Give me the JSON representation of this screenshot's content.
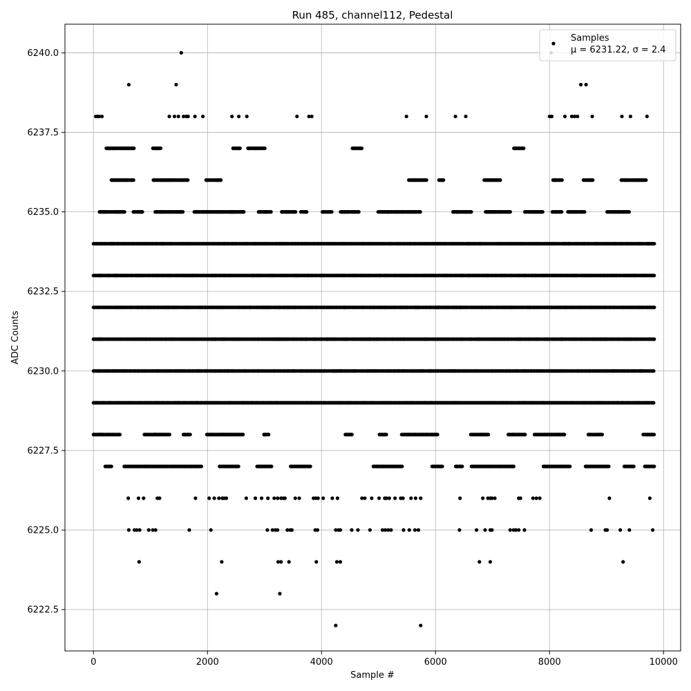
{
  "chart_data": {
    "type": "scatter",
    "title": "Run 485, channel112, Pedestal",
    "xlabel": "Sample #",
    "ylabel": "ADC Counts",
    "xlim": [
      -500,
      10300
    ],
    "ylim": [
      6221.2,
      6240.9
    ],
    "xticks": [
      0,
      2000,
      4000,
      6000,
      8000,
      10000
    ],
    "xtick_labels": [
      "0",
      "2000",
      "4000",
      "6000",
      "8000",
      "10000"
    ],
    "yticks": [
      6222.5,
      6225.0,
      6227.5,
      6230.0,
      6232.5,
      6235.0,
      6237.5,
      6240.0
    ],
    "ytick_labels": [
      "6222.5",
      "6225.0",
      "6227.5",
      "6230.0",
      "6232.5",
      "6235.0",
      "6237.5",
      "6240.0"
    ],
    "grid": true,
    "legend_position": "top-right",
    "marker_color": "#000000",
    "series": [
      {
        "name": "Samples",
        "label_line2": "μ = 6231.22, σ = 2.4",
        "n_samples": 9840,
        "sample_range": [
          0,
          9840
        ],
        "dense_levels": [
          6229,
          6230,
          6231,
          6232,
          6233,
          6234
        ],
        "partial_levels": [
          {
            "y": 6235,
            "density": 0.55
          },
          {
            "y": 6228,
            "density": 0.4
          },
          {
            "y": 6227,
            "density": 0.45
          },
          {
            "y": 6236,
            "density": 0.28
          },
          {
            "y": 6237,
            "density": 0.16
          }
        ],
        "points": [
          [
            1540,
            6240
          ],
          [
            8030,
            6240
          ],
          [
            620,
            6239
          ],
          [
            1450,
            6239
          ],
          [
            8550,
            6239
          ],
          [
            8640,
            6239
          ],
          [
            40,
            6238
          ],
          [
            70,
            6238
          ],
          [
            100,
            6238
          ],
          [
            150,
            6238
          ],
          [
            1330,
            6238
          ],
          [
            1420,
            6238
          ],
          [
            1490,
            6238
          ],
          [
            1580,
            6238
          ],
          [
            1630,
            6238
          ],
          [
            1660,
            6238
          ],
          [
            1780,
            6238
          ],
          [
            1920,
            6238
          ],
          [
            2430,
            6238
          ],
          [
            2550,
            6238
          ],
          [
            2690,
            6238
          ],
          [
            3570,
            6238
          ],
          [
            3780,
            6238
          ],
          [
            3830,
            6238
          ],
          [
            5490,
            6238
          ],
          [
            5840,
            6238
          ],
          [
            6350,
            6238
          ],
          [
            6530,
            6238
          ],
          [
            8000,
            6238
          ],
          [
            8040,
            6238
          ],
          [
            8270,
            6238
          ],
          [
            8390,
            6238
          ],
          [
            8440,
            6238
          ],
          [
            8490,
            6238
          ],
          [
            8750,
            6238
          ],
          [
            9270,
            6238
          ],
          [
            9420,
            6238
          ],
          [
            9710,
            6238
          ],
          [
            610,
            6226
          ],
          [
            790,
            6226
          ],
          [
            880,
            6226
          ],
          [
            1120,
            6226
          ],
          [
            1160,
            6226
          ],
          [
            1790,
            6226
          ],
          [
            2030,
            6226
          ],
          [
            2120,
            6226
          ],
          [
            2200,
            6226
          ],
          [
            2260,
            6226
          ],
          [
            2290,
            6226
          ],
          [
            2330,
            6226
          ],
          [
            2680,
            6226
          ],
          [
            2840,
            6226
          ],
          [
            2950,
            6226
          ],
          [
            3060,
            6226
          ],
          [
            3170,
            6226
          ],
          [
            3230,
            6226
          ],
          [
            3290,
            6226
          ],
          [
            3330,
            6226
          ],
          [
            3360,
            6226
          ],
          [
            3540,
            6226
          ],
          [
            3610,
            6226
          ],
          [
            3860,
            6226
          ],
          [
            3900,
            6226
          ],
          [
            3940,
            6226
          ],
          [
            4030,
            6226
          ],
          [
            4190,
            6226
          ],
          [
            4280,
            6226
          ],
          [
            4710,
            6226
          ],
          [
            4760,
            6226
          ],
          [
            4880,
            6226
          ],
          [
            5010,
            6226
          ],
          [
            5110,
            6226
          ],
          [
            5140,
            6226
          ],
          [
            5190,
            6226
          ],
          [
            5290,
            6226
          ],
          [
            5390,
            6226
          ],
          [
            5430,
            6226
          ],
          [
            5570,
            6226
          ],
          [
            5650,
            6226
          ],
          [
            5740,
            6226
          ],
          [
            6430,
            6226
          ],
          [
            6830,
            6226
          ],
          [
            6920,
            6226
          ],
          [
            6960,
            6226
          ],
          [
            6990,
            6226
          ],
          [
            7040,
            6226
          ],
          [
            7460,
            6226
          ],
          [
            7490,
            6226
          ],
          [
            7710,
            6226
          ],
          [
            7770,
            6226
          ],
          [
            7830,
            6226
          ],
          [
            9050,
            6226
          ],
          [
            9760,
            6226
          ],
          [
            620,
            6225
          ],
          [
            720,
            6225
          ],
          [
            760,
            6225
          ],
          [
            810,
            6225
          ],
          [
            970,
            6225
          ],
          [
            1040,
            6225
          ],
          [
            1090,
            6225
          ],
          [
            1680,
            6225
          ],
          [
            2060,
            6225
          ],
          [
            3050,
            6225
          ],
          [
            3140,
            6225
          ],
          [
            3190,
            6225
          ],
          [
            3230,
            6225
          ],
          [
            3400,
            6225
          ],
          [
            3450,
            6225
          ],
          [
            3480,
            6225
          ],
          [
            3890,
            6225
          ],
          [
            3930,
            6225
          ],
          [
            4250,
            6225
          ],
          [
            4300,
            6225
          ],
          [
            4330,
            6225
          ],
          [
            4530,
            6225
          ],
          [
            4640,
            6225
          ],
          [
            4850,
            6225
          ],
          [
            5070,
            6225
          ],
          [
            5120,
            6225
          ],
          [
            5170,
            6225
          ],
          [
            5220,
            6225
          ],
          [
            5440,
            6225
          ],
          [
            5540,
            6225
          ],
          [
            5640,
            6225
          ],
          [
            5700,
            6225
          ],
          [
            6420,
            6225
          ],
          [
            6720,
            6225
          ],
          [
            6870,
            6225
          ],
          [
            6960,
            6225
          ],
          [
            6990,
            6225
          ],
          [
            7310,
            6225
          ],
          [
            7370,
            6225
          ],
          [
            7410,
            6225
          ],
          [
            7460,
            6225
          ],
          [
            7560,
            6225
          ],
          [
            8730,
            6225
          ],
          [
            8980,
            6225
          ],
          [
            9010,
            6225
          ],
          [
            9240,
            6225
          ],
          [
            9400,
            6225
          ],
          [
            9810,
            6225
          ],
          [
            800,
            6224
          ],
          [
            2250,
            6224
          ],
          [
            3240,
            6224
          ],
          [
            3290,
            6224
          ],
          [
            3430,
            6224
          ],
          [
            3910,
            6224
          ],
          [
            4270,
            6224
          ],
          [
            4330,
            6224
          ],
          [
            6770,
            6224
          ],
          [
            6960,
            6224
          ],
          [
            9290,
            6224
          ],
          [
            2160,
            6223
          ],
          [
            3270,
            6223
          ],
          [
            4250,
            6222
          ],
          [
            5740,
            6222
          ]
        ]
      }
    ]
  }
}
